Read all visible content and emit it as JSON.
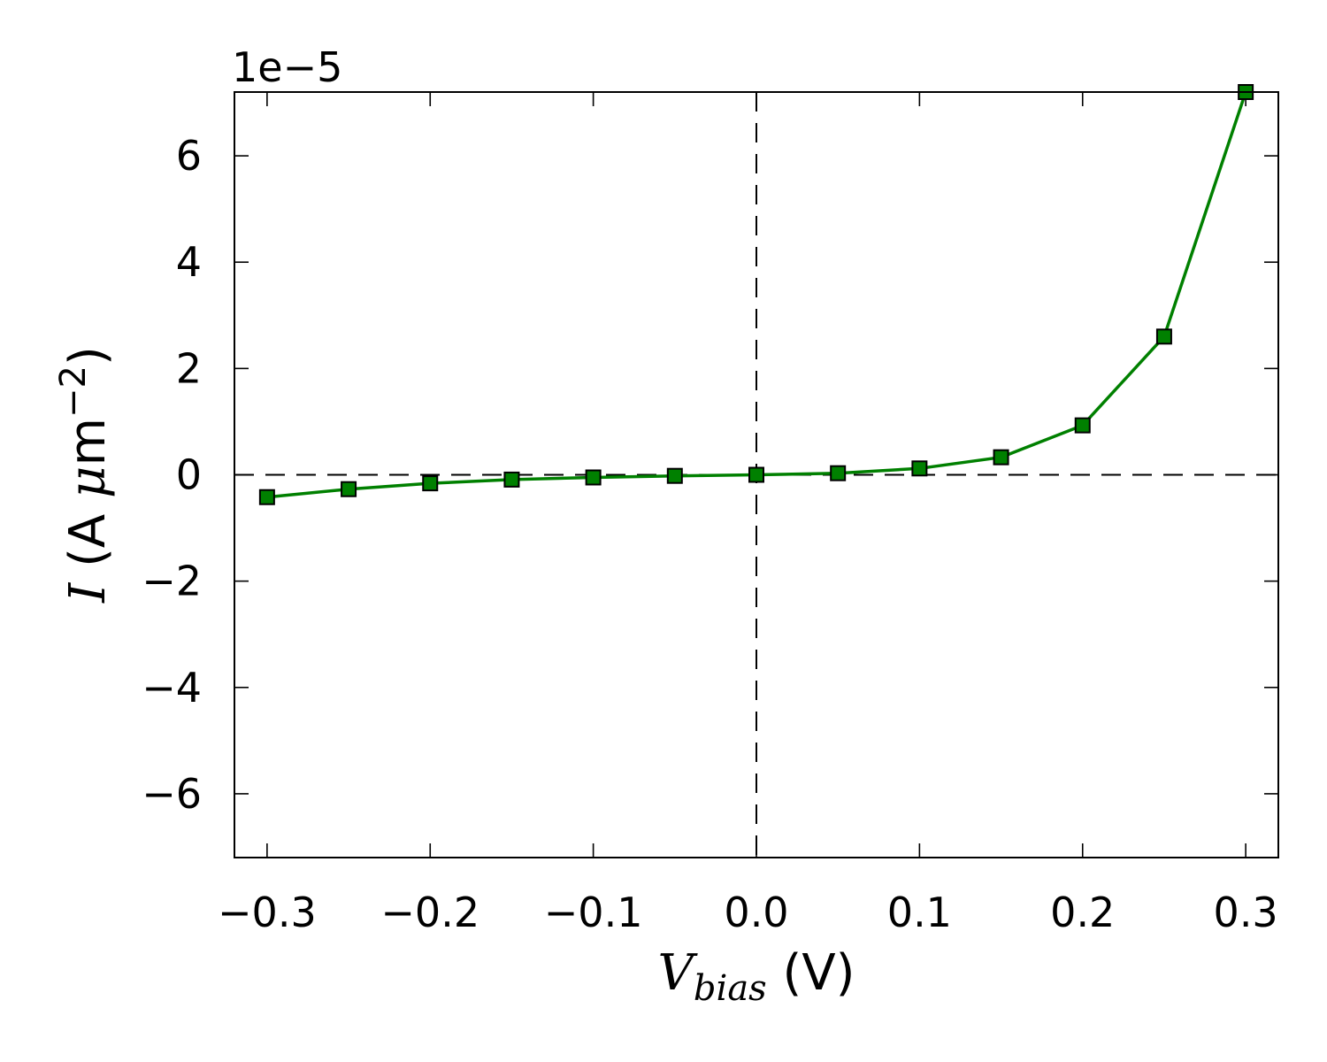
{
  "chart_data": {
    "type": "line",
    "title": "",
    "xlabel": {
      "symbol": "V",
      "subscript": "bias",
      "unit": " (V)"
    },
    "ylabel": {
      "symbol": "I",
      "unit_prefix": " (A ",
      "mu": "μ",
      "unit_base": "m",
      "exponent": "−2",
      "unit_suffix": ")"
    },
    "y_offset_label": "1e−5",
    "y_scale_factor": 1e-05,
    "xlim": [
      -0.32,
      0.32
    ],
    "ylim": [
      -7.2,
      7.2
    ],
    "x_ticks": [
      -0.3,
      -0.2,
      -0.1,
      0.0,
      0.1,
      0.2,
      0.3
    ],
    "x_tick_labels": [
      "−0.3",
      "−0.2",
      "−0.1",
      "0.0",
      "0.1",
      "0.2",
      "0.3"
    ],
    "y_ticks": [
      -6,
      -4,
      -2,
      0,
      2,
      4,
      6
    ],
    "y_tick_labels": [
      "−6",
      "−4",
      "−2",
      "0",
      "2",
      "4",
      "6"
    ],
    "grid": false,
    "reference_lines": [
      "x=0",
      "y=0"
    ],
    "series": [
      {
        "color": "#008000",
        "marker": "square",
        "x": [
          -0.3,
          -0.25,
          -0.2,
          -0.15,
          -0.1,
          -0.05,
          0.0,
          0.05,
          0.1,
          0.15,
          0.2,
          0.25,
          0.3
        ],
        "y": [
          -0.42,
          -0.27,
          -0.16,
          -0.09,
          -0.05,
          -0.02,
          0.0,
          0.03,
          0.12,
          0.33,
          0.93,
          2.6,
          7.2
        ]
      }
    ]
  }
}
